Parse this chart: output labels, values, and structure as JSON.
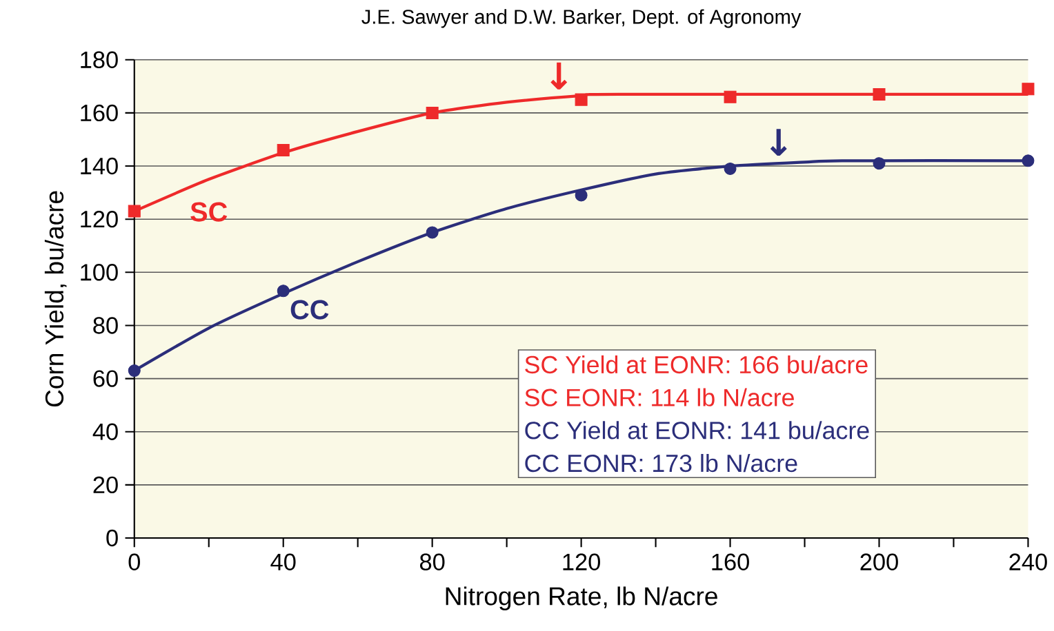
{
  "chart_data": {
    "type": "line",
    "subtitle": "J.E. Sawyer and D.W. Barker, Dept. of Agronomy",
    "xlabel": "Nitrogen Rate, lb N/acre",
    "ylabel": "Corn Yield, bu/acre",
    "xlim": [
      0,
      240
    ],
    "ylim": [
      0,
      180
    ],
    "xticks": [
      0,
      {
        "value": 20,
        "label": null
      },
      40,
      {
        "value": 60,
        "label": null
      },
      80,
      {
        "value": 100,
        "label": null
      },
      120,
      {
        "value": 140,
        "label": null
      },
      160,
      {
        "value": 180,
        "label": null
      },
      200,
      {
        "value": 220,
        "label": null
      },
      240
    ],
    "yticks": [
      0,
      20,
      40,
      60,
      80,
      100,
      120,
      140,
      160,
      180
    ],
    "grid": "y",
    "series": [
      {
        "name": "SC",
        "marker": "none",
        "color": "#ee2a2a",
        "x": [
          0,
          20,
          40,
          60,
          80,
          100,
          120,
          130,
          240
        ],
        "values": [
          123,
          135,
          145,
          153,
          160,
          164,
          166.5,
          167,
          167
        ]
      },
      {
        "type": "scatter",
        "marker": "square",
        "color": "#ee2a2a",
        "x": [
          0,
          40,
          80,
          120,
          160,
          200,
          240
        ],
        "values": [
          123,
          146,
          160,
          165,
          166,
          167,
          169
        ]
      },
      {
        "name": "CC",
        "marker": "none",
        "color": "#2b2e7a",
        "x": [
          0,
          20,
          40,
          60,
          80,
          100,
          120,
          140,
          160,
          180,
          190,
          240
        ],
        "values": [
          63,
          79,
          92,
          104,
          115,
          124,
          131,
          137,
          140,
          141.5,
          142,
          142
        ]
      },
      {
        "type": "scatter",
        "marker": "circle",
        "color": "#2b2e7a",
        "x": [
          0,
          40,
          80,
          120,
          160,
          200,
          240
        ],
        "values": [
          63,
          93,
          115,
          129,
          139,
          141,
          142
        ]
      }
    ],
    "annotations": [
      "SC Yield at EONR:  166 bu/acre",
      "SC EONR:  114 lb N/acre",
      "CC Yield at EONR:  141 bu/acre",
      "CC EONR:  173 lb N/acre",
      {
        "text": "↓",
        "x": 114,
        "y": 166
      },
      {
        "text": "↓",
        "x": 173,
        "y": 141
      }
    ]
  }
}
